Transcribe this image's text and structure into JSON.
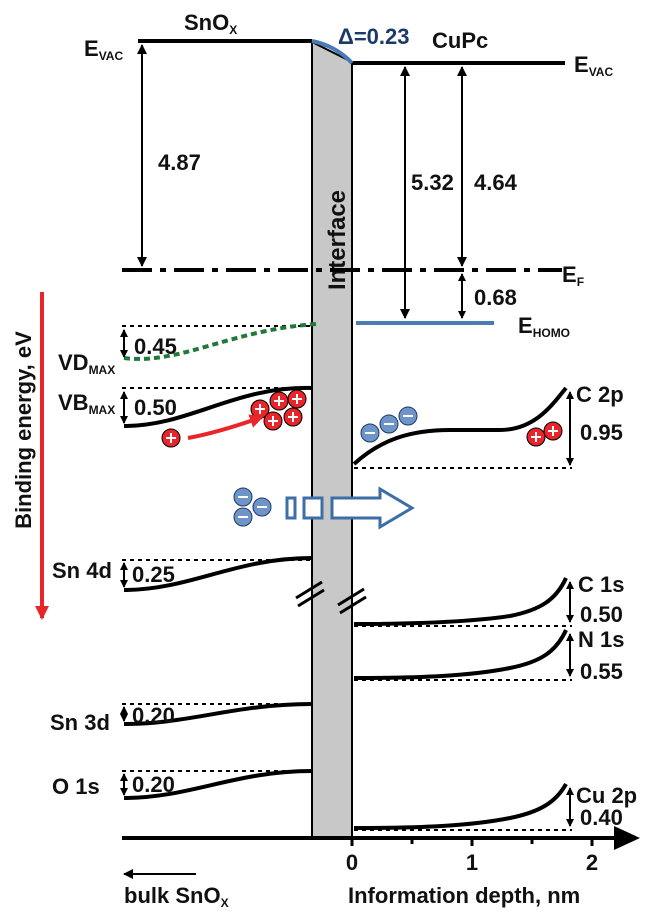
{
  "left_material": {
    "text": "SnO",
    "sub": "X"
  },
  "right_material": "CuPc",
  "interface_label": "Interface",
  "delta_label": "Δ=0.23",
  "evac_left": {
    "text": "E",
    "sub": "VAC"
  },
  "evac_right": {
    "text": "E",
    "sub": "VAC"
  },
  "fermi_label": {
    "text": "E",
    "sub": "F"
  },
  "homo_label": {
    "text": "E",
    "sub": "HOMO"
  },
  "values": {
    "left_work_function": "4.87",
    "right_ionization": "5.32",
    "right_work_function": "4.64",
    "homo_offset": "0.68",
    "vd_shift": "0.45",
    "vb_shift": "0.50",
    "sn4d_shift": "0.25",
    "sn3d_shift": "0.20",
    "o1s_shift": "0.20",
    "c2p_shift": "0.95",
    "c1s_shift": "0.50",
    "n1s_shift": "0.55",
    "cu2p_shift": "0.40"
  },
  "levels_left": {
    "vd": {
      "text": "VD",
      "sub": "MAX"
    },
    "vb": {
      "text": "VB",
      "sub": "MAX"
    },
    "sn4d": "Sn 4d",
    "sn3d": "Sn 3d",
    "o1s": "O 1s"
  },
  "levels_right": {
    "c2p": "C 2p",
    "c1s": "C 1s",
    "n1s": "N 1s",
    "cu2p": "Cu 2p"
  },
  "binding_energy_label": "Binding energy, eV",
  "x_axis": {
    "title": "Information depth, nm",
    "ticks": [
      "0",
      "1",
      "2"
    ],
    "bulk_label": {
      "text": "bulk SnO",
      "sub": "X"
    }
  },
  "colors": {
    "line": "#000000",
    "blue": "#4a7bb5",
    "green": "#1f7a3a",
    "red": "#e8252b",
    "interface_fill": "#c8c8c8"
  }
}
